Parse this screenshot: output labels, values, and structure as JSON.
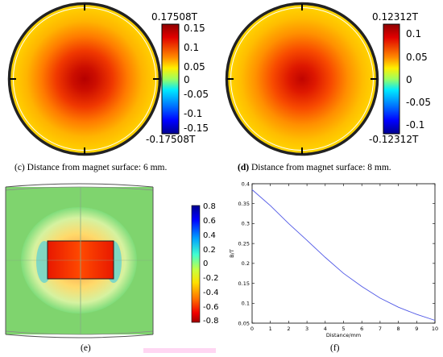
{
  "panel_c": {
    "max_label": "0.17508T",
    "min_label": "-0.17508T",
    "ticks": [
      "0.15",
      "0.1",
      "0.05",
      "0",
      "-0.05",
      "-0.1",
      "-0.15"
    ],
    "caption_letter": "(c)",
    "caption_text": " Distance from magnet surface: 6 mm."
  },
  "panel_d": {
    "max_label": "0.12312T",
    "min_label": "-0.12312T",
    "ticks": [
      "0.1",
      "0.05",
      "0",
      "-0.05",
      "-0.1"
    ],
    "caption_letter": "(d)",
    "caption_text": " Distance from magnet surface: 8 mm."
  },
  "panel_e": {
    "ticks": [
      "0.8",
      "0.6",
      "0.4",
      "0.2",
      "0",
      "-0.2",
      "-0.4",
      "-0.6",
      "-0.8"
    ],
    "caption": "(e)"
  },
  "panel_f": {
    "caption": "(f)"
  },
  "chart_data": [
    {
      "type": "heatmap",
      "colorbar_range": [
        -0.17508,
        0.17508
      ],
      "colorbar_ticks": [
        0.15,
        0.1,
        0.05,
        0,
        -0.05,
        -0.1,
        -0.15
      ],
      "colorbar_max_label": "0.17508T",
      "colorbar_min_label": "-0.17508T"
    },
    {
      "type": "heatmap",
      "colorbar_range": [
        -0.12312,
        0.12312
      ],
      "colorbar_ticks": [
        0.1,
        0.05,
        0,
        -0.05,
        -0.1
      ],
      "colorbar_max_label": "0.12312T",
      "colorbar_min_label": "-0.12312T"
    },
    {
      "type": "heatmap",
      "colorbar_range": [
        -0.8,
        0.8
      ],
      "colorbar_ticks": [
        0.8,
        0.6,
        0.4,
        0.2,
        0,
        -0.2,
        -0.4,
        -0.6,
        -0.8
      ]
    },
    {
      "type": "line",
      "xlabel": "Distance/mm",
      "ylabel": "B/T",
      "xlim": [
        0,
        10
      ],
      "ylim": [
        0.05,
        0.4
      ],
      "xticks": [
        0,
        1,
        2,
        3,
        4,
        5,
        6,
        7,
        8,
        9,
        10
      ],
      "yticks": [
        0.05,
        0.1,
        0.15,
        0.2,
        0.25,
        0.3,
        0.35,
        0.4
      ],
      "grid": false,
      "line_color": "#4f57e6",
      "series": [
        {
          "x": [
            0,
            1,
            2,
            3,
            4,
            5,
            6,
            7,
            8,
            9,
            10
          ],
          "values": [
            0.385,
            0.345,
            0.3,
            0.258,
            0.215,
            0.175,
            0.142,
            0.113,
            0.09,
            0.072,
            0.057
          ]
        }
      ]
    }
  ]
}
